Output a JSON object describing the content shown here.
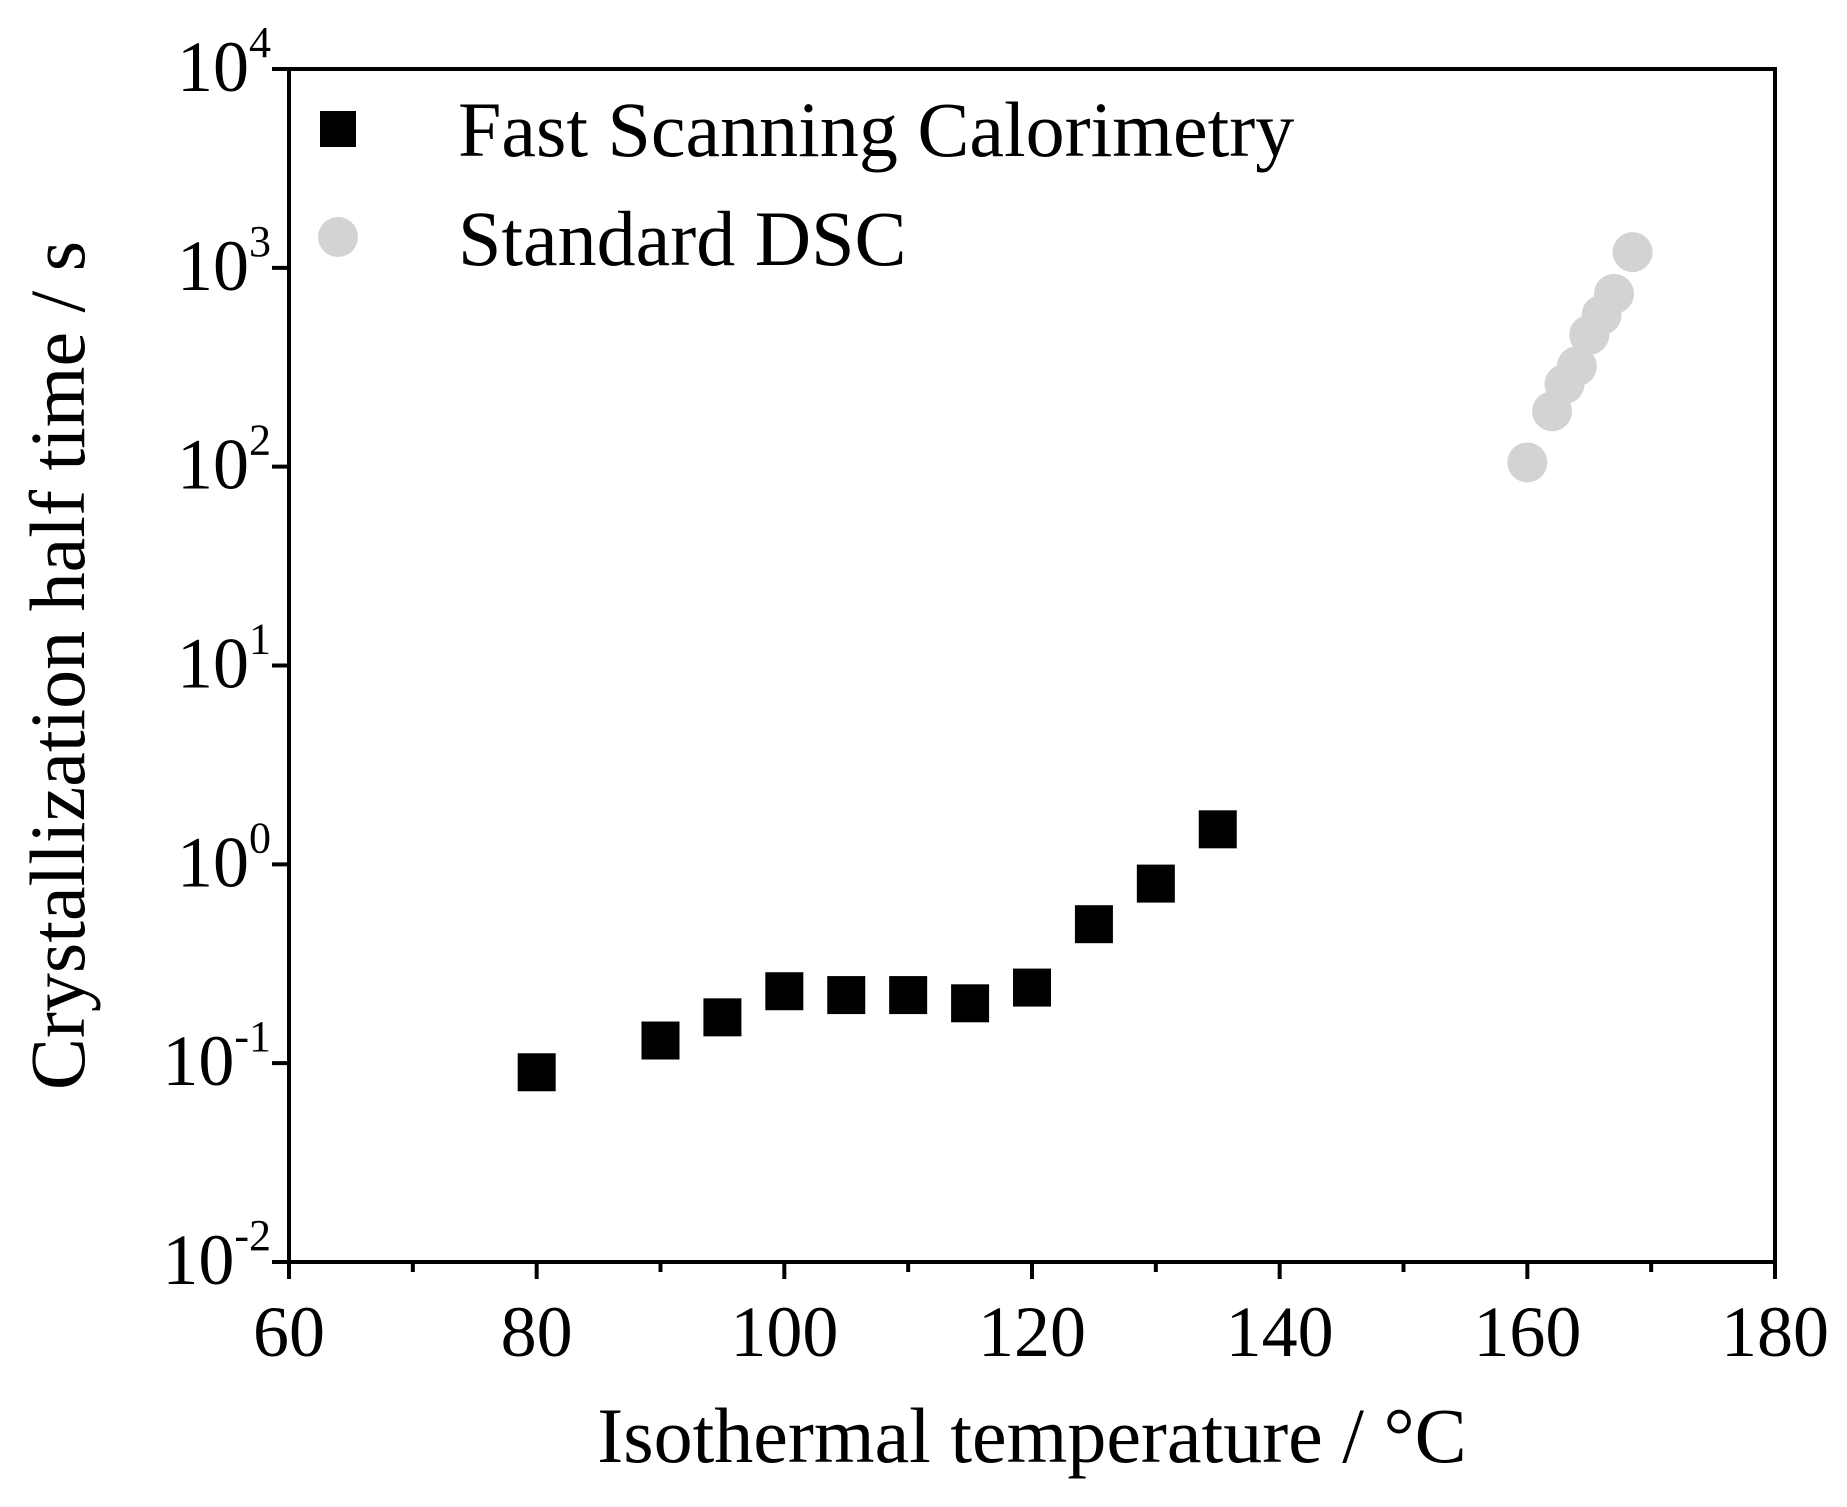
{
  "chart_data": {
    "type": "scatter",
    "xlabel": "Isothermal temperature / °C",
    "ylabel": "Crystallization half time / s",
    "xlim": [
      60,
      180
    ],
    "ylim": [
      0.01,
      10000
    ],
    "yscale": "log",
    "x_ticks": [
      60,
      80,
      100,
      120,
      140,
      160,
      180
    ],
    "x_minor_ticks": [
      70,
      90,
      110,
      130,
      150,
      170
    ],
    "y_ticks": [
      {
        "base": "10",
        "exp": "-2",
        "value": 0.01
      },
      {
        "base": "10",
        "exp": "-1",
        "value": 0.1
      },
      {
        "base": "10",
        "exp": "0",
        "value": 1
      },
      {
        "base": "10",
        "exp": "1",
        "value": 10
      },
      {
        "base": "10",
        "exp": "2",
        "value": 100
      },
      {
        "base": "10",
        "exp": "3",
        "value": 1000
      },
      {
        "base": "10",
        "exp": "4",
        "value": 10000
      }
    ],
    "legend_position": "top-left",
    "series": [
      {
        "name": "Fast Scanning Calorimetry",
        "marker": "square",
        "color": "#000000",
        "points": [
          {
            "x": 80,
            "y": 0.09
          },
          {
            "x": 90,
            "y": 0.13
          },
          {
            "x": 95,
            "y": 0.17
          },
          {
            "x": 100,
            "y": 0.23
          },
          {
            "x": 105,
            "y": 0.22
          },
          {
            "x": 110,
            "y": 0.22
          },
          {
            "x": 115,
            "y": 0.2
          },
          {
            "x": 120,
            "y": 0.24
          },
          {
            "x": 125,
            "y": 0.5
          },
          {
            "x": 130,
            "y": 0.8
          },
          {
            "x": 135,
            "y": 1.5
          }
        ]
      },
      {
        "name": "Standard DSC",
        "marker": "circle",
        "color": "#d3d3d3",
        "points": [
          {
            "x": 160,
            "y": 105
          },
          {
            "x": 162,
            "y": 190
          },
          {
            "x": 163,
            "y": 260
          },
          {
            "x": 164,
            "y": 320
          },
          {
            "x": 165,
            "y": 460
          },
          {
            "x": 166,
            "y": 580
          },
          {
            "x": 167,
            "y": 740
          },
          {
            "x": 168.5,
            "y": 1200
          }
        ]
      }
    ]
  }
}
